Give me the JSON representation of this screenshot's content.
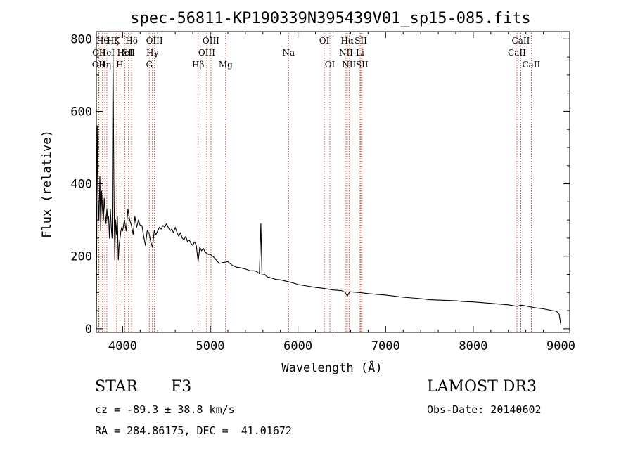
{
  "colors": {
    "line": "#000000",
    "marker": "#c0392b",
    "background": "#ffffff"
  },
  "footer": {
    "object_class": "STAR",
    "subclass": "F3",
    "survey": "LAMOST DR3",
    "redshift": "cz = -89.3 ± 38.8 km/s",
    "obs_date": "Obs-Date: 20140602",
    "coords": "RA = 284.86175, DEC =  41.01672"
  },
  "chart_data": {
    "type": "line",
    "title": "spec-56811-KP190339N395439V01_sp15-085.fits",
    "xlabel": "Wavelength (Å)",
    "ylabel": "Flux (relative)",
    "xlim": [
      3700,
      9100
    ],
    "ylim": [
      -10,
      820
    ],
    "xticks": [
      4000,
      5000,
      6000,
      7000,
      8000,
      9000
    ],
    "yticks": [
      0,
      200,
      400,
      600,
      800
    ],
    "series": [
      {
        "name": "flux",
        "x": [
          3700,
          3710,
          3720,
          3730,
          3740,
          3750,
          3760,
          3770,
          3780,
          3790,
          3800,
          3810,
          3820,
          3830,
          3840,
          3850,
          3860,
          3870,
          3880,
          3890,
          3900,
          3910,
          3920,
          3930,
          3940,
          3950,
          3960,
          3970,
          3980,
          3990,
          4000,
          4020,
          4040,
          4060,
          4080,
          4100,
          4120,
          4140,
          4160,
          4180,
          4200,
          4220,
          4240,
          4260,
          4280,
          4300,
          4320,
          4340,
          4360,
          4380,
          4400,
          4420,
          4440,
          4460,
          4480,
          4500,
          4520,
          4540,
          4560,
          4580,
          4600,
          4620,
          4640,
          4660,
          4680,
          4700,
          4720,
          4740,
          4760,
          4780,
          4800,
          4820,
          4840,
          4861,
          4880,
          4900,
          4920,
          4940,
          4960,
          4980,
          5000,
          5050,
          5100,
          5150,
          5200,
          5250,
          5300,
          5350,
          5400,
          5450,
          5500,
          5530,
          5560,
          5577,
          5590,
          5620,
          5650,
          5700,
          5750,
          5800,
          5850,
          5890,
          5950,
          6000,
          6100,
          6200,
          6300,
          6400,
          6500,
          6540,
          6563,
          6590,
          6650,
          6700,
          6800,
          6900,
          7000,
          7100,
          7200,
          7300,
          7400,
          7500,
          7600,
          7700,
          7800,
          7900,
          8000,
          8100,
          8200,
          8300,
          8400,
          8500,
          8542,
          8600,
          8662,
          8700,
          8800,
          8900,
          8950,
          8980,
          9000
        ],
        "y": [
          0,
          560,
          360,
          300,
          420,
          270,
          380,
          330,
          300,
          360,
          320,
          290,
          330,
          300,
          310,
          250,
          330,
          280,
          250,
          770,
          410,
          190,
          300,
          260,
          310,
          190,
          230,
          250,
          270,
          280,
          270,
          300,
          270,
          330,
          300,
          285,
          260,
          310,
          280,
          300,
          285,
          285,
          255,
          230,
          270,
          265,
          240,
          225,
          270,
          260,
          270,
          280,
          275,
          285,
          280,
          290,
          280,
          270,
          275,
          265,
          280,
          265,
          255,
          265,
          250,
          245,
          255,
          240,
          245,
          235,
          230,
          240,
          230,
          185,
          225,
          215,
          222,
          212,
          208,
          205,
          205,
          195,
          180,
          183,
          185,
          175,
          170,
          168,
          165,
          160,
          160,
          158,
          152,
          290,
          148,
          150,
          143,
          140,
          136,
          135,
          132,
          130,
          126,
          122,
          118,
          114,
          111,
          107,
          105,
          100,
          90,
          102,
          101,
          100,
          97,
          95,
          93,
          90,
          87,
          85,
          83,
          80,
          79,
          78,
          77,
          75,
          74,
          72,
          70,
          68,
          66,
          62,
          65,
          63,
          60,
          58,
          55,
          50,
          48,
          40,
          10
        ]
      }
    ],
    "markers": [
      {
        "wavelength": 3727,
        "label": "OII",
        "row": 3
      },
      {
        "wavelength": 3730,
        "label": "OII",
        "row": 2
      },
      {
        "wavelength": 3771,
        "label": "Hθ",
        "row": 1
      },
      {
        "wavelength": 3798,
        "label": "Hη",
        "row": 3
      },
      {
        "wavelength": 3820,
        "label": "HeI",
        "row": 2
      },
      {
        "wavelength": 3889,
        "label": "Hζ",
        "row": 1
      },
      {
        "wavelength": 3933,
        "label": "K",
        "row": 1
      },
      {
        "wavelength": 3968,
        "label": "H",
        "row": 3
      },
      {
        "wavelength": 4026,
        "label": "HeI",
        "row": 2
      },
      {
        "wavelength": 4068,
        "label": "SII",
        "row": 2
      },
      {
        "wavelength": 4102,
        "label": "Hδ",
        "row": 1
      },
      {
        "wavelength": 4304,
        "label": "G",
        "row": 3
      },
      {
        "wavelength": 4340,
        "label": "Hγ",
        "row": 2
      },
      {
        "wavelength": 4363,
        "label": "OIII",
        "row": 1
      },
      {
        "wavelength": 4861,
        "label": "Hβ",
        "row": 3
      },
      {
        "wavelength": 4959,
        "label": "OIII",
        "row": 2
      },
      {
        "wavelength": 5007,
        "label": "OIII",
        "row": 1
      },
      {
        "wavelength": 5175,
        "label": "Mg",
        "row": 3
      },
      {
        "wavelength": 5893,
        "label": "Na",
        "row": 2
      },
      {
        "wavelength": 6300,
        "label": "OI",
        "row": 1
      },
      {
        "wavelength": 6364,
        "label": "OI",
        "row": 3
      },
      {
        "wavelength": 6548,
        "label": "NII",
        "row": 2
      },
      {
        "wavelength": 6563,
        "label": "Hα",
        "row": 1
      },
      {
        "wavelength": 6583,
        "label": "NII",
        "row": 3
      },
      {
        "wavelength": 6708,
        "label": "Li",
        "row": 2
      },
      {
        "wavelength": 6717,
        "label": "SII",
        "row": 1
      },
      {
        "wavelength": 6731,
        "label": "SII",
        "row": 3
      },
      {
        "wavelength": 8498,
        "label": "CaII",
        "row": 2
      },
      {
        "wavelength": 8542,
        "label": "CaII",
        "row": 1
      },
      {
        "wavelength": 8662,
        "label": "CaII",
        "row": 3
      }
    ]
  }
}
